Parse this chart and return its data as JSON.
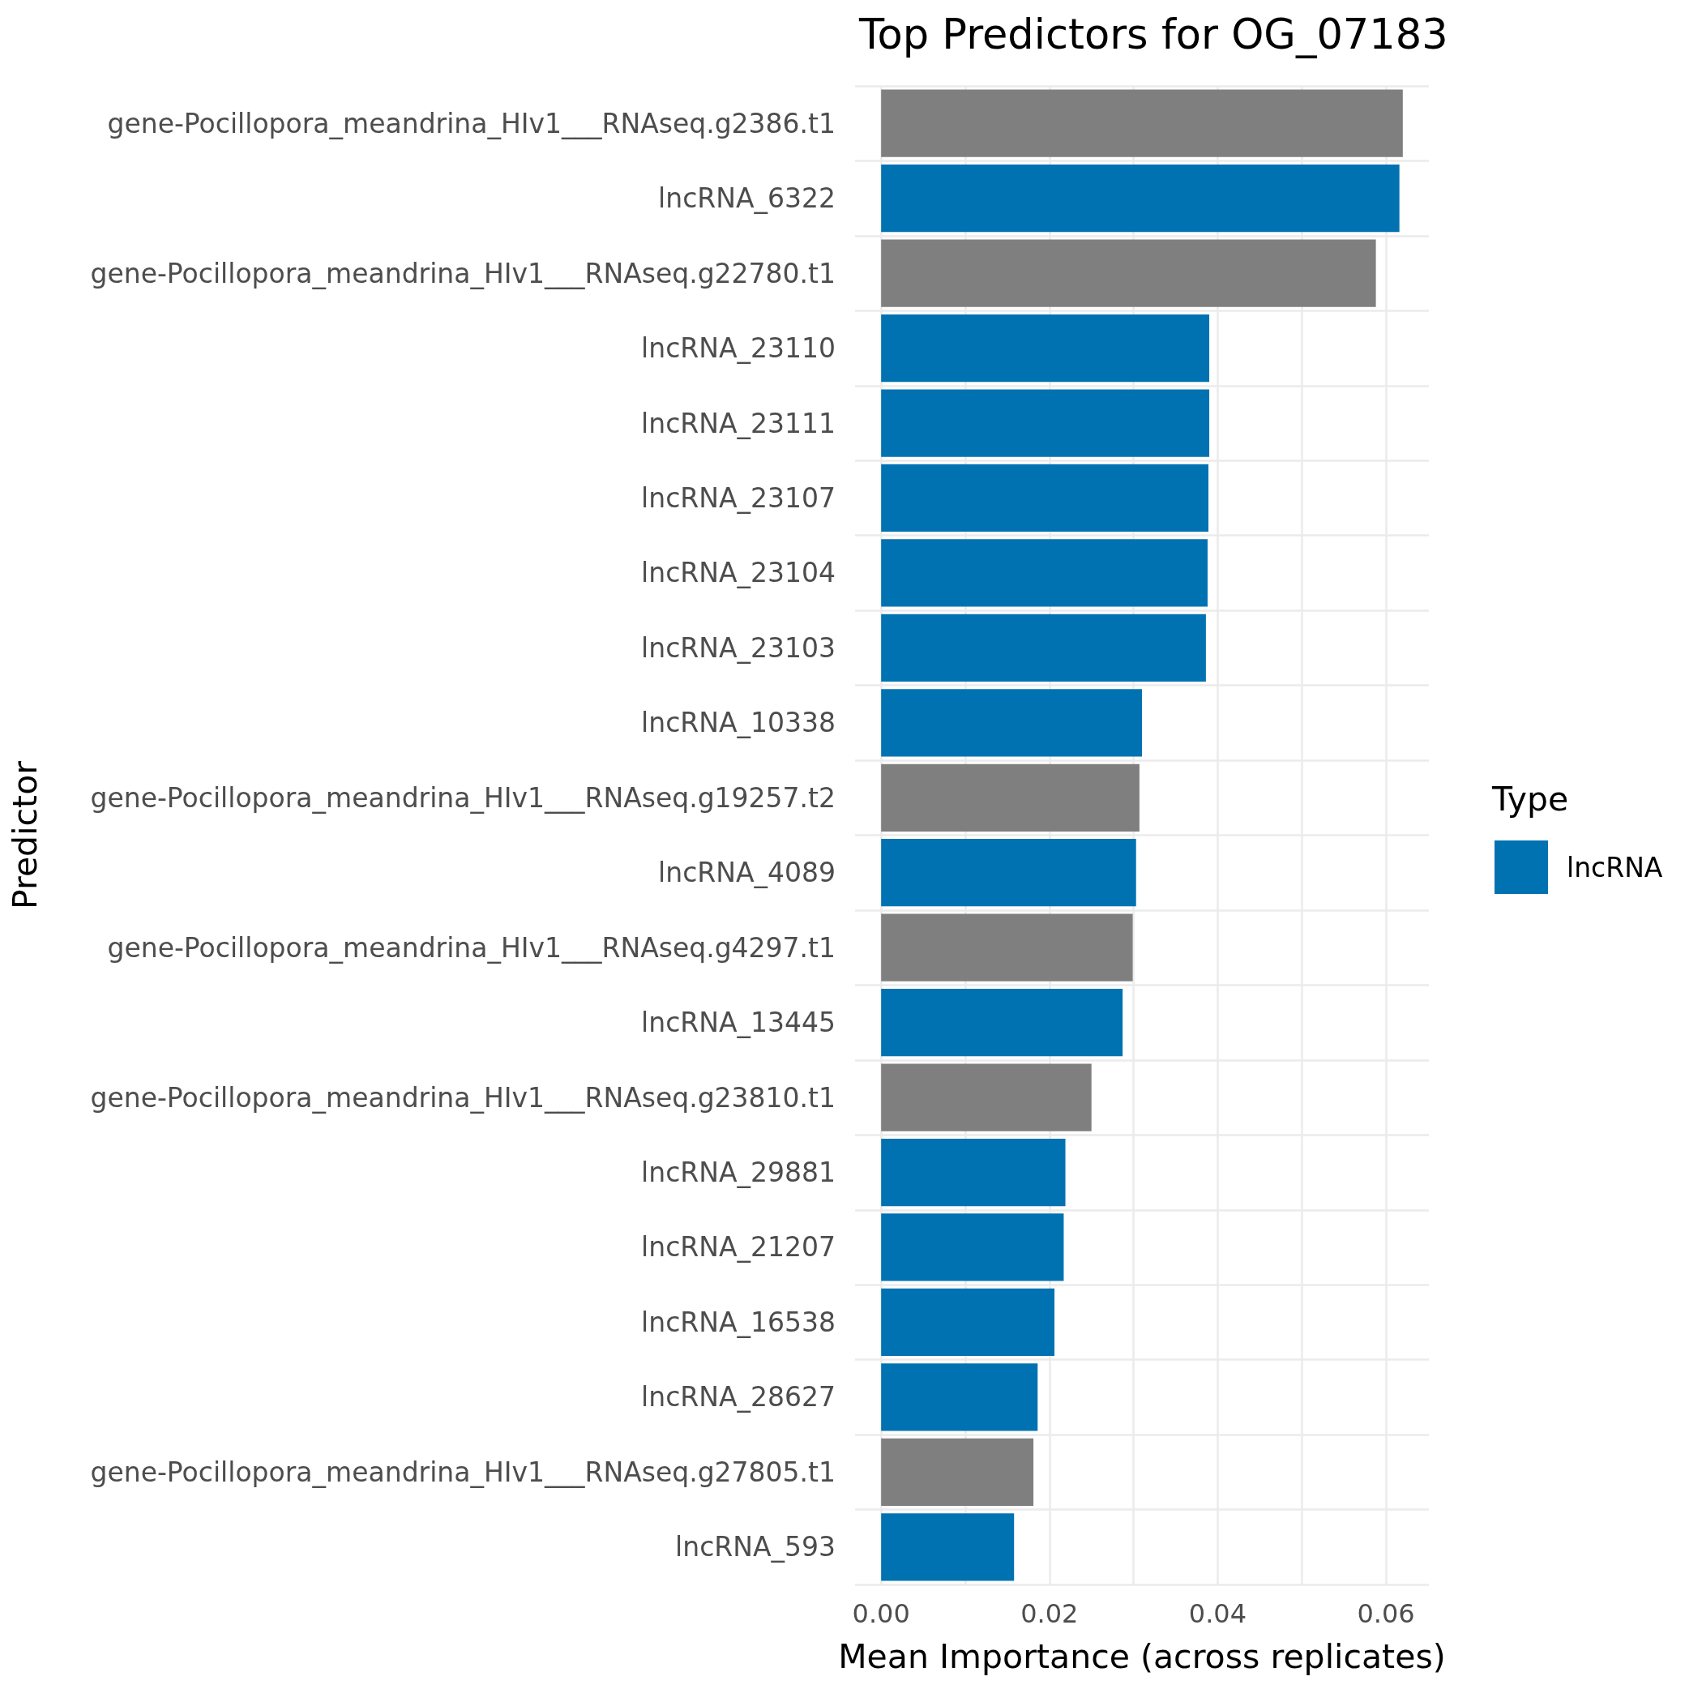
{
  "chart_data": {
    "type": "bar",
    "orientation": "horizontal",
    "title": "Top Predictors for OG_07183",
    "xlabel": "Mean Importance (across replicates)",
    "ylabel": "Predictor",
    "legend_title": "Type",
    "categories": [
      "gene-Pocillopora_meandrina_HIv1___RNAseq.g2386.t1",
      "lncRNA_6322",
      "gene-Pocillopora_meandrina_HIv1___RNAseq.g22780.t1",
      "lncRNA_23110",
      "lncRNA_23111",
      "lncRNA_23107",
      "lncRNA_23104",
      "lncRNA_23103",
      "lncRNA_10338",
      "gene-Pocillopora_meandrina_HIv1___RNAseq.g19257.t2",
      "lncRNA_4089",
      "gene-Pocillopora_meandrina_HIv1___RNAseq.g4297.t1",
      "lncRNA_13445",
      "gene-Pocillopora_meandrina_HIv1___RNAseq.g23810.t1",
      "lncRNA_29881",
      "lncRNA_21207",
      "lncRNA_16538",
      "lncRNA_28627",
      "gene-Pocillopora_meandrina_HIv1___RNAseq.g27805.t1",
      "lncRNA_593"
    ],
    "series": [
      {
        "name": "lncRNA",
        "color": "#0072b2",
        "values": [
          null,
          0.0616,
          null,
          0.039,
          0.039,
          0.0389,
          0.0388,
          0.0386,
          0.031,
          null,
          0.0303,
          null,
          0.0287,
          null,
          0.0219,
          0.0217,
          0.0206,
          0.0186,
          null,
          0.0158
        ]
      },
      {
        "color": "#7f7f7f",
        "values": [
          0.062,
          null,
          0.0588,
          null,
          null,
          null,
          null,
          null,
          null,
          0.0307,
          null,
          0.0299,
          null,
          0.025,
          null,
          null,
          null,
          null,
          0.0181,
          null
        ]
      }
    ],
    "xlim": [
      -0.0031,
      0.0651
    ],
    "xticks": [
      {
        "value": 0,
        "label": "0.00"
      },
      {
        "value": 0.01,
        "label": null
      },
      {
        "value": 0.02,
        "label": "0.02"
      },
      {
        "value": 0.03,
        "label": null
      },
      {
        "value": 0.04,
        "label": "0.04"
      },
      {
        "value": 0.05,
        "label": null
      },
      {
        "value": 0.06,
        "label": "0.06"
      }
    ],
    "grid": true,
    "legend": "right"
  }
}
